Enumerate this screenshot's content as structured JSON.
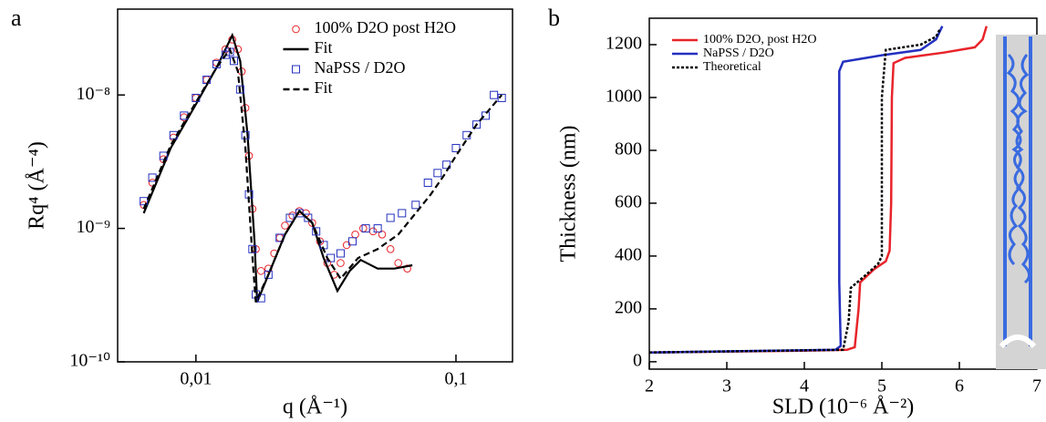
{
  "chart_data": [
    {
      "type": "line",
      "panel_label": "a",
      "x_label": "q (Å⁻¹)",
      "y_label": "Rq⁴ (Å⁻⁴)",
      "log_x": true,
      "log_y": true,
      "legend": "upper center",
      "xlim": [
        0.005,
        0.165
      ],
      "ylim": [
        1e-10,
        4.4e-08
      ],
      "xticks": [
        {
          "value": 0.01,
          "label": "0,01"
        },
        {
          "value": 0.1,
          "label": "0,1"
        }
      ],
      "yticks": [
        {
          "value": 1e-10,
          "label": "10⁻¹⁰"
        },
        {
          "value": 1e-09,
          "label": "10⁻⁹"
        },
        {
          "value": 1e-08,
          "label": "10⁻⁸"
        }
      ],
      "series": [
        {
          "name": "100% D2O post H2O",
          "color": "#e8242a",
          "style": "circle",
          "x": [
            0.0063,
            0.0068,
            0.0075,
            0.0082,
            0.009,
            0.01,
            0.011,
            0.012,
            0.013,
            0.0138,
            0.0145,
            0.015,
            0.0155,
            0.016,
            0.0165,
            0.017,
            0.0178,
            0.019,
            0.02,
            0.021,
            0.022,
            0.0235,
            0.025,
            0.0265,
            0.028,
            0.03,
            0.032,
            0.034,
            0.036,
            0.038,
            0.041,
            0.044,
            0.048,
            0.052,
            0.056,
            0.06,
            0.065
          ],
          "values": [
            1.5e-09,
            2.2e-09,
            3.3e-09,
            4.8e-09,
            6.8e-09,
            9.5e-09,
            1.3e-08,
            1.75e-08,
            2.2e-08,
            2.6e-08,
            2.2e-08,
            1.5e-08,
            8e-09,
            3.5e-09,
            1.4e-09,
            7e-10,
            4.8e-10,
            5e-10,
            6.5e-10,
            8.5e-10,
            1.05e-09,
            1.25e-09,
            1.35e-09,
            1.3e-09,
            1.1e-09,
            8e-10,
            5.5e-10,
            4.5e-10,
            5.5e-10,
            7.5e-10,
            9e-10,
            1e-09,
            9.5e-10,
            9e-10,
            7e-10,
            5.5e-10,
            5e-10
          ]
        },
        {
          "name": "Fit",
          "color": "#000000",
          "style": "solid",
          "x": [
            0.0063,
            0.008,
            0.01,
            0.012,
            0.0138,
            0.0148,
            0.0158,
            0.0168,
            0.0172,
            0.019,
            0.022,
            0.025,
            0.028,
            0.031,
            0.035,
            0.039,
            0.043,
            0.05,
            0.058,
            0.068
          ],
          "values": [
            1.3e-09,
            4e-09,
            8.5e-09,
            1.6e-08,
            2.8e-08,
            1.8e-08,
            5e-09,
            8e-10,
            2.8e-10,
            4.5e-10,
            9e-10,
            1.35e-09,
            1.1e-09,
            6e-10,
            3.4e-10,
            4.8e-10,
            5.8e-10,
            5e-10,
            5e-10,
            5.3e-10
          ]
        },
        {
          "name": "NaPSS / D2O",
          "color": "#2330c0",
          "style": "square",
          "x": [
            0.0063,
            0.0068,
            0.0075,
            0.0082,
            0.009,
            0.01,
            0.011,
            0.012,
            0.013,
            0.0135,
            0.014,
            0.0148,
            0.0155,
            0.016,
            0.0165,
            0.017,
            0.0178,
            0.019,
            0.021,
            0.023,
            0.025,
            0.027,
            0.029,
            0.031,
            0.033,
            0.036,
            0.04,
            0.045,
            0.05,
            0.056,
            0.062,
            0.07,
            0.078,
            0.085,
            0.092,
            0.1,
            0.11,
            0.12,
            0.13,
            0.14,
            0.15
          ],
          "values": [
            1.6e-09,
            2.4e-09,
            3.5e-09,
            5e-09,
            7e-09,
            9.5e-09,
            1.3e-08,
            1.7e-08,
            2e-08,
            2.1e-08,
            1.8e-08,
            1.1e-08,
            5e-09,
            1.8e-09,
            7e-10,
            3.2e-10,
            3e-10,
            4.5e-10,
            8.5e-10,
            1.2e-09,
            1.3e-09,
            1.2e-09,
            9.5e-10,
            7.5e-10,
            6e-10,
            6.5e-10,
            8e-10,
            1e-09,
            1e-09,
            1.2e-09,
            1.3e-09,
            1.5e-09,
            2.2e-09,
            2.6e-09,
            3e-09,
            4e-09,
            5e-09,
            6e-09,
            7e-09,
            1e-08,
            9.5e-09
          ]
        },
        {
          "name": "Fit",
          "color": "#000000",
          "style": "dash",
          "x": [
            0.0063,
            0.008,
            0.01,
            0.012,
            0.0135,
            0.0145,
            0.0155,
            0.0165,
            0.017,
            0.019,
            0.022,
            0.025,
            0.028,
            0.032,
            0.036,
            0.042,
            0.05,
            0.06,
            0.07,
            0.08,
            0.09,
            0.1,
            0.12,
            0.15
          ],
          "values": [
            1.4e-09,
            4.2e-09,
            8.8e-09,
            1.6e-08,
            2.2e-08,
            1.5e-08,
            4e-09,
            6e-10,
            2.8e-10,
            4.5e-10,
            9e-10,
            1.35e-09,
            1.1e-09,
            6e-10,
            4.2e-10,
            6e-10,
            7e-10,
            9e-10,
            1.3e-09,
            1.8e-09,
            2.5e-09,
            3.5e-09,
            6e-09,
            1e-08
          ]
        }
      ]
    },
    {
      "type": "line",
      "panel_label": "b",
      "x_label": "SLD (10⁻⁶ Å⁻²)",
      "y_label": "Thickness (nm)",
      "legend": "upper left",
      "xlim": [
        2,
        7
      ],
      "ylim": [
        -28,
        1300
      ],
      "xticks": [
        2,
        3,
        4,
        5,
        6,
        7
      ],
      "yticks": [
        0,
        200,
        400,
        600,
        800,
        1000,
        1200
      ],
      "series": [
        {
          "name": "100% D2O, post H2O",
          "color": "#e8242a",
          "style": "solid",
          "x": [
            2,
            4,
            4.55,
            4.65,
            4.7,
            4.72,
            4.9,
            5.05,
            5.1,
            5.12,
            5.13,
            5.15,
            5.3,
            5.8,
            6.2,
            6.3,
            6.35
          ],
          "values": [
            35,
            42,
            45,
            55,
            200,
            300,
            350,
            380,
            420,
            600,
            1000,
            1130,
            1150,
            1170,
            1190,
            1220,
            1270
          ]
        },
        {
          "name": "NaPSS / D2O",
          "color": "#2330c0",
          "style": "solid",
          "x": [
            2,
            4.4,
            4.47,
            4.45,
            4.45,
            4.5,
            5,
            5.5,
            5.7,
            5.78
          ],
          "values": [
            35,
            45,
            60,
            300,
            1100,
            1135,
            1160,
            1180,
            1220,
            1270
          ]
        },
        {
          "name": "Theoretical",
          "color": "#000000",
          "style": "dot",
          "x": [
            2,
            4.5,
            4.57,
            4.6,
            4.8,
            4.95,
            5,
            5,
            5.05,
            5.5,
            5.7,
            5.75
          ],
          "values": [
            35,
            45,
            150,
            280,
            330,
            370,
            400,
            1000,
            1180,
            1200,
            1230,
            1260
          ]
        }
      ]
    }
  ]
}
